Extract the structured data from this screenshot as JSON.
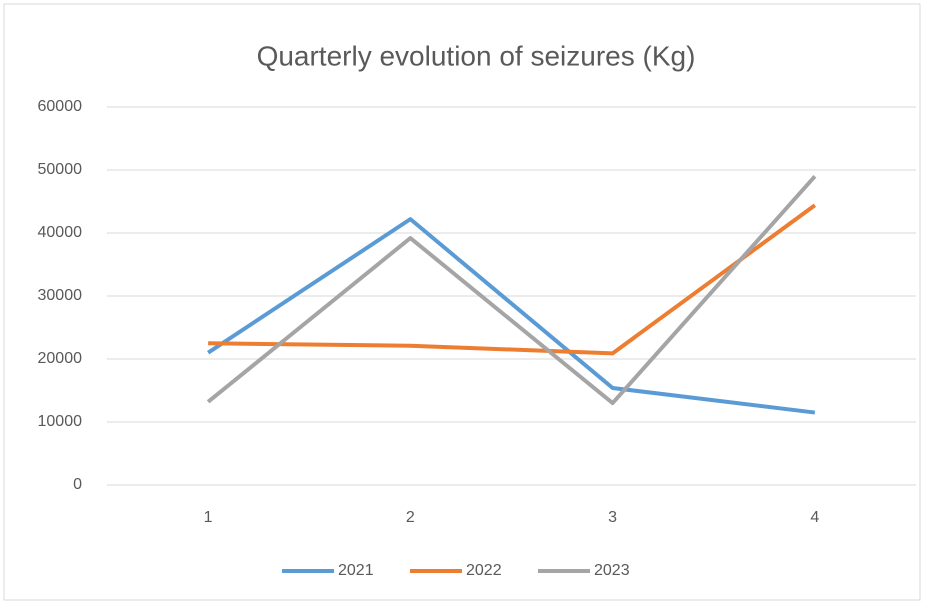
{
  "chart_data": {
    "type": "line",
    "title": "Quarterly evolution of seizures (Kg)",
    "categories": [
      "1",
      "2",
      "3",
      "4"
    ],
    "series": [
      {
        "name": "2021",
        "color": "#5b9bd5",
        "values": [
          21000,
          42200,
          15400,
          11500
        ]
      },
      {
        "name": "2022",
        "color": "#ed7d31",
        "values": [
          22500,
          22100,
          20900,
          44400
        ]
      },
      {
        "name": "2023",
        "color": "#a5a5a5",
        "values": [
          13200,
          39200,
          13000,
          49000
        ]
      }
    ],
    "ylim": [
      0,
      60000
    ],
    "yticks": [
      0,
      10000,
      20000,
      30000,
      40000,
      50000,
      60000
    ],
    "grid": true,
    "legend": "bottom"
  }
}
